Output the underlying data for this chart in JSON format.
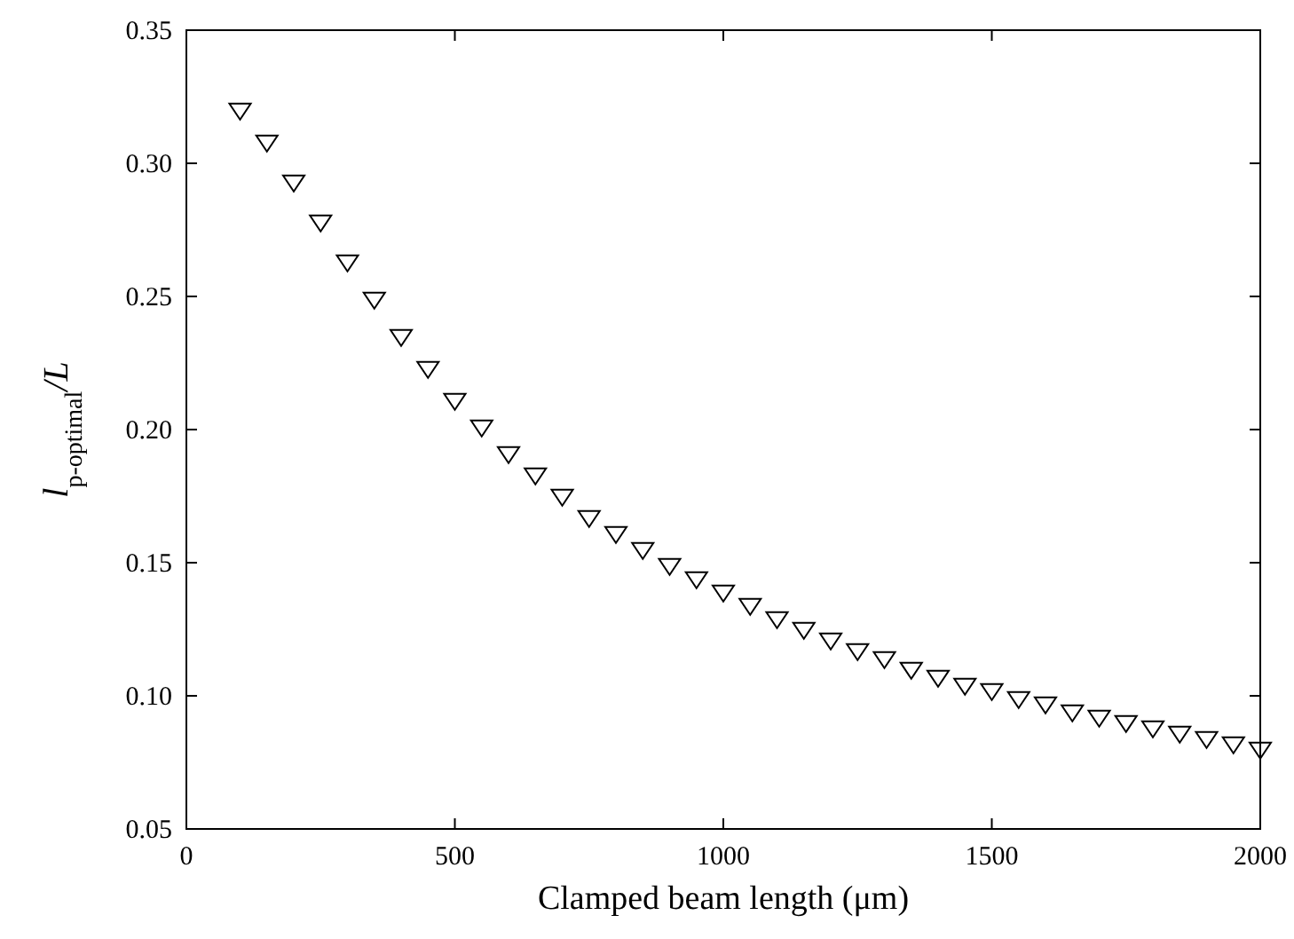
{
  "chart_data": {
    "type": "scatter",
    "xlabel": "Clamped beam length (μm)",
    "ylabel": "l$_{p-optimal}$/L",
    "x": [
      100,
      150,
      200,
      250,
      300,
      350,
      400,
      450,
      500,
      550,
      600,
      650,
      700,
      750,
      800,
      850,
      900,
      950,
      1000,
      1050,
      1100,
      1150,
      1200,
      1250,
      1300,
      1350,
      1400,
      1450,
      1500,
      1550,
      1600,
      1650,
      1700,
      1750,
      1800,
      1850,
      1900,
      1950,
      2000
    ],
    "series": [
      {
        "color": "#000000",
        "values": [
          0.32,
          0.308,
          0.293,
          0.278,
          0.263,
          0.249,
          0.235,
          0.223,
          0.211,
          0.201,
          0.191,
          0.183,
          0.175,
          0.167,
          0.161,
          0.155,
          0.149,
          0.144,
          0.139,
          0.134,
          0.129,
          0.125,
          0.121,
          0.117,
          0.114,
          0.11,
          0.107,
          0.104,
          0.102,
          0.099,
          0.097,
          0.094,
          0.092,
          0.09,
          0.088,
          0.086,
          0.084,
          0.082,
          0.08
        ]
      }
    ],
    "marker": "triangle",
    "grid": false,
    "xlim": [
      0,
      2000
    ],
    "xticks": [
      0,
      500,
      1000,
      1500,
      2000
    ],
    "ylim": [
      0.05,
      0.35
    ],
    "yticks": [
      {
        "value": 0.05,
        "label": "0.05"
      },
      {
        "value": 0.1,
        "label": "0.10"
      },
      {
        "value": 0.15,
        "label": "0.15"
      },
      {
        "value": 0.2,
        "label": "0.20"
      },
      {
        "value": 0.25,
        "label": "0.25"
      },
      {
        "value": 0.3,
        "label": "0.30"
      },
      {
        "value": 0.35,
        "label": "0.35"
      }
    ]
  }
}
